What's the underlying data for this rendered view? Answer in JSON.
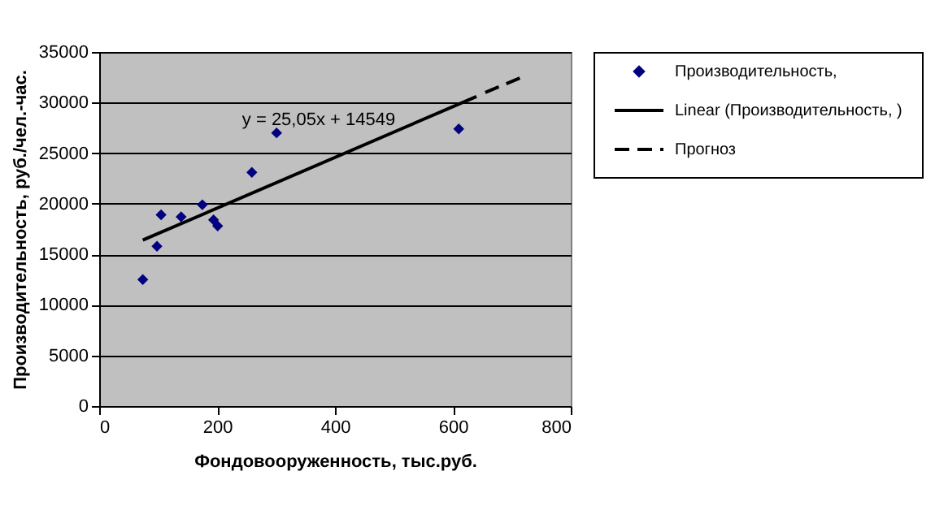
{
  "chart_data": {
    "type": "scatter",
    "xlabel": "Фондовооруженность, тыс.руб.",
    "ylabel": "Производительность, руб./чел.-час.",
    "xlim": [
      0,
      800
    ],
    "xticks": [
      0,
      200,
      400,
      600,
      800
    ],
    "ylim": [
      0,
      35000
    ],
    "yticks": [
      0,
      5000,
      10000,
      15000,
      20000,
      25000,
      30000,
      35000
    ],
    "grid": "y",
    "legend": "right",
    "annotations": [
      "y = 25,05x + 14549"
    ],
    "series": [
      {
        "name": "Производительность,",
        "type": "scatter",
        "marker": "diamond",
        "color": "#000080",
        "x": [
          74,
          98,
          105,
          139,
          175,
          194,
          201,
          259,
          301,
          610
        ],
        "values": [
          12500,
          15800,
          18900,
          18700,
          19900,
          18400,
          17800,
          23100,
          27000,
          27400
        ]
      },
      {
        "name": "Linear (Производительность, )",
        "type": "line",
        "marker": "none",
        "line_style": "solid",
        "color": "#000000",
        "x": [
          74,
          640
        ],
        "values": [
          16400,
          30600
        ]
      },
      {
        "name": "Прогноз",
        "type": "line",
        "marker": "none",
        "line_style": "dashed",
        "color": "#000000",
        "x": [
          655,
          717
        ],
        "values": [
          31000,
          32500
        ]
      }
    ]
  }
}
